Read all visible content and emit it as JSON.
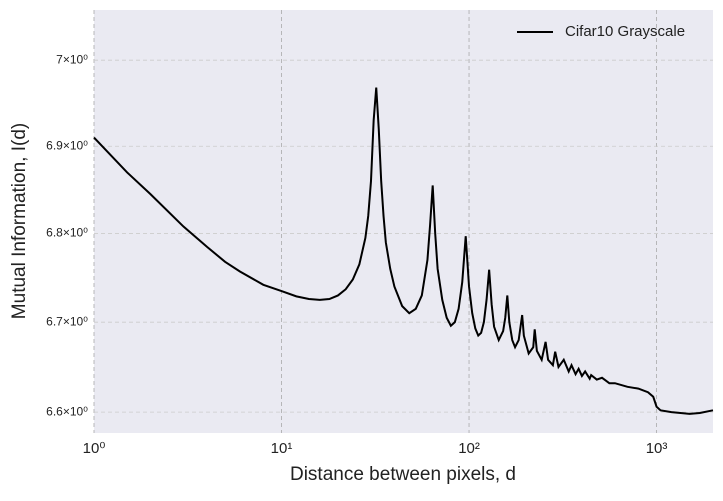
{
  "chart_data": {
    "type": "line",
    "xlabel": "Distance between pixels, d",
    "ylabel": "Mutual Information, I(d)",
    "xscale": "log",
    "yscale": "log",
    "grid": true,
    "legend": "upper right",
    "xlim": [
      1,
      2000
    ],
    "ylim": [
      6.577,
      7.059
    ],
    "xticks": [
      {
        "value": 1,
        "label": "10⁰"
      },
      {
        "value": 10,
        "label": "10¹"
      },
      {
        "value": 100,
        "label": "10²"
      },
      {
        "value": 1000,
        "label": "10³"
      }
    ],
    "yticks": [
      {
        "value": 6.6,
        "label": "6.6×10⁰"
      },
      {
        "value": 6.7,
        "label": "6.7×10⁰"
      },
      {
        "value": 6.8,
        "label": "6.8×10⁰"
      },
      {
        "value": 6.9,
        "label": "6.9×10⁰"
      },
      {
        "value": 7,
        "label": "7×10⁰"
      }
    ],
    "series": [
      {
        "name": "Cifar10 Grayscale",
        "color": "#000000",
        "x": [
          1,
          1.5,
          2,
          3,
          4,
          5,
          6,
          8,
          10,
          12,
          14,
          16,
          18,
          20,
          22,
          24,
          26,
          28,
          29,
          30,
          31,
          32,
          33,
          34,
          35,
          36,
          38,
          40,
          44,
          48,
          52,
          56,
          60,
          62,
          64,
          66,
          68,
          72,
          76,
          80,
          84,
          88,
          92,
          96,
          100,
          104,
          108,
          112,
          116,
          120,
          124,
          128,
          132,
          136,
          144,
          152,
          156,
          160,
          164,
          170,
          176,
          184,
          192,
          196,
          208,
          220,
          224,
          230,
          244,
          256,
          264,
          280,
          288,
          300,
          320,
          340,
          352,
          370,
          384,
          400,
          416,
          440,
          448,
          480,
          512,
          560,
          600,
          700,
          800,
          900,
          960,
          1000,
          1050,
          1200,
          1500,
          1700,
          2000
        ],
        "values": [
          6.91,
          6.87,
          6.845,
          6.808,
          6.785,
          6.768,
          6.757,
          6.742,
          6.735,
          6.729,
          6.726,
          6.725,
          6.726,
          6.73,
          6.737,
          6.748,
          6.765,
          6.795,
          6.82,
          6.86,
          6.93,
          6.968,
          6.92,
          6.86,
          6.82,
          6.79,
          6.76,
          6.74,
          6.718,
          6.71,
          6.715,
          6.73,
          6.77,
          6.81,
          6.855,
          6.8,
          6.76,
          6.725,
          6.705,
          6.696,
          6.7,
          6.715,
          6.745,
          6.797,
          6.74,
          6.71,
          6.693,
          6.685,
          6.688,
          6.7,
          6.725,
          6.759,
          6.72,
          6.695,
          6.68,
          6.69,
          6.705,
          6.73,
          6.7,
          6.68,
          6.672,
          6.68,
          6.708,
          6.685,
          6.665,
          6.672,
          6.692,
          6.668,
          6.658,
          6.678,
          6.658,
          6.652,
          6.667,
          6.65,
          6.658,
          6.645,
          6.652,
          6.642,
          6.648,
          6.64,
          6.645,
          6.637,
          6.641,
          6.636,
          6.638,
          6.632,
          6.632,
          6.628,
          6.626,
          6.622,
          6.617,
          6.606,
          6.602,
          6.6,
          6.598,
          6.599,
          6.602
        ]
      }
    ]
  }
}
